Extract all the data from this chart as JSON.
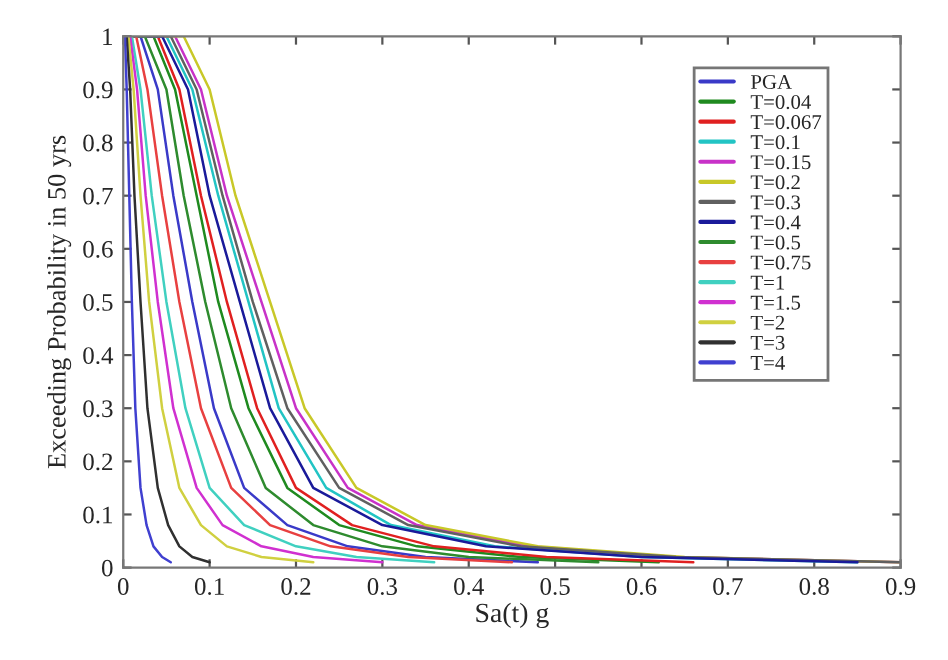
{
  "chart_data": {
    "type": "line",
    "xlabel": "Sa(t) g",
    "ylabel": "Exceeding Probability in 50 yrs",
    "xlim": [
      0,
      0.9
    ],
    "ylim": [
      0,
      1
    ],
    "xticks": [
      0,
      0.1,
      0.2,
      0.3,
      0.4,
      0.5,
      0.6,
      0.7,
      0.8,
      0.9
    ],
    "yticks": [
      0,
      0.1,
      0.2,
      0.3,
      0.4,
      0.5,
      0.6,
      0.7,
      0.8,
      0.9,
      1
    ],
    "grid": false,
    "legend": "top right",
    "marker": "none",
    "line_style": "solid",
    "series": [
      {
        "name": "PGA",
        "color": "#3a3ac8",
        "x": [
          0,
          0.02,
          0.04,
          0.058,
          0.08,
          0.105,
          0.14,
          0.19,
          0.26,
          0.35,
          0.48
        ],
        "values": [
          1,
          1,
          0.9,
          0.7,
          0.5,
          0.3,
          0.15,
          0.08,
          0.04,
          0.02,
          0.01
        ]
      },
      {
        "name": "T=0.04",
        "color": "#1f8a1f",
        "x": [
          0,
          0.035,
          0.06,
          0.085,
          0.11,
          0.145,
          0.19,
          0.25,
          0.34,
          0.46,
          0.62
        ],
        "values": [
          1,
          1,
          0.9,
          0.7,
          0.5,
          0.3,
          0.15,
          0.08,
          0.04,
          0.02,
          0.01
        ]
      },
      {
        "name": "T=0.067",
        "color": "#e02020",
        "x": [
          0,
          0.04,
          0.065,
          0.09,
          0.12,
          0.155,
          0.2,
          0.265,
          0.36,
          0.49,
          0.66
        ],
        "values": [
          1,
          1,
          0.9,
          0.7,
          0.5,
          0.3,
          0.15,
          0.08,
          0.04,
          0.02,
          0.01
        ]
      },
      {
        "name": "T=0.1",
        "color": "#22c4c4",
        "x": [
          0,
          0.05,
          0.08,
          0.11,
          0.145,
          0.18,
          0.235,
          0.31,
          0.43,
          0.6,
          0.85
        ],
        "values": [
          1,
          1,
          0.9,
          0.7,
          0.5,
          0.3,
          0.15,
          0.08,
          0.04,
          0.02,
          0.01
        ]
      },
      {
        "name": "T=0.15",
        "color": "#c832c8",
        "x": [
          0,
          0.06,
          0.09,
          0.12,
          0.16,
          0.2,
          0.26,
          0.34,
          0.47,
          0.64,
          0.9
        ],
        "values": [
          1,
          1,
          0.9,
          0.7,
          0.5,
          0.3,
          0.15,
          0.08,
          0.04,
          0.02,
          0.01
        ]
      },
      {
        "name": "T=0.2",
        "color": "#c8c828",
        "x": [
          0,
          0.07,
          0.1,
          0.13,
          0.17,
          0.21,
          0.27,
          0.35,
          0.48,
          0.65,
          0.9
        ],
        "values": [
          1,
          1,
          0.9,
          0.7,
          0.5,
          0.3,
          0.15,
          0.08,
          0.04,
          0.02,
          0.01
        ]
      },
      {
        "name": "T=0.3",
        "color": "#606060",
        "x": [
          0,
          0.055,
          0.085,
          0.115,
          0.15,
          0.19,
          0.25,
          0.33,
          0.46,
          0.64,
          0.9
        ],
        "values": [
          1,
          1,
          0.9,
          0.7,
          0.5,
          0.3,
          0.15,
          0.08,
          0.04,
          0.02,
          0.01
        ]
      },
      {
        "name": "T=0.4",
        "color": "#1a1a9a",
        "x": [
          0,
          0.045,
          0.075,
          0.1,
          0.135,
          0.17,
          0.22,
          0.3,
          0.42,
          0.6,
          0.85
        ],
        "values": [
          1,
          1,
          0.9,
          0.7,
          0.5,
          0.3,
          0.15,
          0.08,
          0.04,
          0.02,
          0.01
        ]
      },
      {
        "name": "T=0.5",
        "color": "#2e8b2e",
        "x": [
          0,
          0.025,
          0.05,
          0.07,
          0.095,
          0.125,
          0.165,
          0.22,
          0.3,
          0.4,
          0.55
        ],
        "values": [
          1,
          1,
          0.9,
          0.7,
          0.5,
          0.3,
          0.15,
          0.08,
          0.04,
          0.02,
          0.01
        ]
      },
      {
        "name": "T=0.75",
        "color": "#e84040",
        "x": [
          0,
          0.015,
          0.028,
          0.045,
          0.065,
          0.09,
          0.125,
          0.17,
          0.24,
          0.33,
          0.45
        ],
        "values": [
          1,
          1,
          0.9,
          0.7,
          0.5,
          0.3,
          0.15,
          0.08,
          0.04,
          0.02,
          0.01
        ]
      },
      {
        "name": "T=1",
        "color": "#40d0c0",
        "x": [
          0,
          0.01,
          0.02,
          0.033,
          0.05,
          0.072,
          0.1,
          0.14,
          0.2,
          0.27,
          0.36
        ],
        "values": [
          1,
          1,
          0.9,
          0.7,
          0.5,
          0.3,
          0.15,
          0.08,
          0.04,
          0.02,
          0.01
        ]
      },
      {
        "name": "T=1.5",
        "color": "#d030d0",
        "x": [
          0,
          0.008,
          0.016,
          0.026,
          0.04,
          0.058,
          0.085,
          0.115,
          0.16,
          0.22,
          0.3
        ],
        "values": [
          1,
          1,
          0.9,
          0.7,
          0.5,
          0.3,
          0.15,
          0.08,
          0.04,
          0.02,
          0.01
        ]
      },
      {
        "name": "T=2",
        "color": "#d0d040",
        "x": [
          0,
          0.006,
          0.012,
          0.02,
          0.03,
          0.045,
          0.065,
          0.09,
          0.12,
          0.16,
          0.22
        ],
        "values": [
          1,
          1,
          0.9,
          0.7,
          0.5,
          0.3,
          0.15,
          0.08,
          0.04,
          0.02,
          0.01
        ]
      },
      {
        "name": "T=3",
        "color": "#303030",
        "x": [
          0,
          0.004,
          0.008,
          0.013,
          0.02,
          0.028,
          0.04,
          0.052,
          0.065,
          0.08,
          0.1
        ],
        "values": [
          1,
          1,
          0.9,
          0.7,
          0.5,
          0.3,
          0.15,
          0.08,
          0.04,
          0.02,
          0.01
        ]
      },
      {
        "name": "T=4",
        "color": "#4040d0",
        "x": [
          0,
          0.002,
          0.004,
          0.007,
          0.01,
          0.014,
          0.02,
          0.027,
          0.035,
          0.045,
          0.055
        ],
        "values": [
          1,
          1,
          0.9,
          0.7,
          0.5,
          0.3,
          0.15,
          0.08,
          0.04,
          0.02,
          0.01
        ]
      }
    ]
  }
}
